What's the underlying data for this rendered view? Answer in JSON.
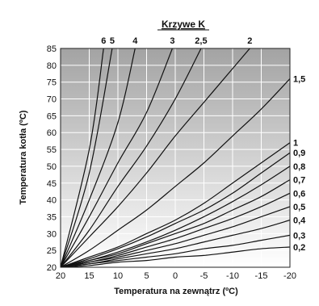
{
  "chart_data": {
    "type": "line",
    "title": "Krzywe K",
    "xlabel": "Temperatura na zewnątrz (ºC)",
    "ylabel": "Temperatura kotła (ºC)",
    "xlim": [
      20,
      -20
    ],
    "ylim": [
      20,
      85
    ],
    "xticks": [
      "20",
      "15",
      "10",
      "5",
      "0",
      "-5",
      "-10",
      "-15",
      "-20"
    ],
    "yticks": [
      "20",
      "25",
      "30",
      "35",
      "40",
      "45",
      "50",
      "55",
      "60",
      "65",
      "70",
      "75",
      "80",
      "85"
    ],
    "grid": true,
    "background": "vertical gradient, gray at top to white at bottom",
    "curves": [
      {
        "name": "6",
        "label_position": "top",
        "x": [
          20,
          15,
          12.5
        ],
        "y": [
          20,
          55,
          85
        ]
      },
      {
        "name": "5",
        "label_position": "top",
        "x": [
          20,
          15,
          11
        ],
        "y": [
          20,
          48,
          85
        ]
      },
      {
        "name": "4",
        "label_position": "top",
        "x": [
          20,
          15,
          10,
          7
        ],
        "y": [
          20,
          40,
          63,
          85
        ]
      },
      {
        "name": "3",
        "label_position": "top",
        "x": [
          20,
          15,
          10,
          5,
          0.5
        ],
        "y": [
          20,
          35,
          51,
          66,
          85
        ]
      },
      {
        "name": "2,5",
        "label_position": "top",
        "x": [
          20,
          15,
          10,
          5,
          0,
          -4.5
        ],
        "y": [
          20,
          31,
          44,
          56,
          70,
          85
        ]
      },
      {
        "name": "2",
        "label_position": "top",
        "x": [
          20,
          15,
          10,
          5,
          0,
          -5,
          -10,
          -13
        ],
        "y": [
          20,
          29,
          38,
          48,
          59,
          69,
          79,
          85
        ]
      },
      {
        "name": "1,5",
        "label_position": "right",
        "x": [
          20,
          15,
          10,
          5,
          0,
          -5,
          -10,
          -15,
          -20
        ],
        "y": [
          20,
          25,
          31,
          37,
          44,
          51,
          59,
          67,
          76
        ]
      },
      {
        "name": "1",
        "label_position": "right",
        "x": [
          20,
          15,
          10,
          5,
          0,
          -5,
          -10,
          -15,
          -20
        ],
        "y": [
          20,
          23,
          26,
          30,
          34,
          39,
          45,
          51,
          57
        ]
      },
      {
        "name": "0,9",
        "label_position": "right",
        "x": [
          20,
          15,
          10,
          5,
          0,
          -5,
          -10,
          -15,
          -20
        ],
        "y": [
          20,
          22.5,
          25.5,
          29,
          33,
          37,
          42,
          48,
          54
        ]
      },
      {
        "name": "0,8",
        "label_position": "right",
        "x": [
          20,
          15,
          10,
          5,
          0,
          -5,
          -10,
          -15,
          -20
        ],
        "y": [
          20,
          22,
          24.5,
          27.5,
          31,
          35,
          39.5,
          44.5,
          50
        ]
      },
      {
        "name": "0,7",
        "label_position": "right",
        "x": [
          20,
          15,
          10,
          5,
          0,
          -5,
          -10,
          -15,
          -20
        ],
        "y": [
          20,
          22,
          24,
          27,
          30,
          33,
          37,
          41,
          46
        ]
      },
      {
        "name": "0,6",
        "label_position": "right",
        "x": [
          20,
          15,
          10,
          5,
          0,
          -5,
          -10,
          -15,
          -20
        ],
        "y": [
          20,
          21.5,
          23.5,
          26,
          28.5,
          31.5,
          34.5,
          38,
          42
        ]
      },
      {
        "name": "0,5",
        "label_position": "right",
        "x": [
          20,
          15,
          10,
          5,
          0,
          -5,
          -10,
          -15,
          -20
        ],
        "y": [
          20,
          21.5,
          23,
          25,
          27,
          29.5,
          32,
          35,
          38
        ]
      },
      {
        "name": "0,4",
        "label_position": "right",
        "x": [
          20,
          15,
          10,
          5,
          0,
          -5,
          -10,
          -15,
          -20
        ],
        "y": [
          20,
          21,
          22.5,
          24,
          25.5,
          27.5,
          29.5,
          31.5,
          34
        ]
      },
      {
        "name": "0,3",
        "label_position": "right",
        "x": [
          20,
          15,
          10,
          5,
          0,
          -5,
          -10,
          -15,
          -20
        ],
        "y": [
          20,
          21,
          22,
          23,
          24,
          25.5,
          26.5,
          28,
          29.5
        ]
      },
      {
        "name": "0,2",
        "label_position": "right",
        "x": [
          20,
          15,
          10,
          5,
          0,
          -5,
          -10,
          -15,
          -20
        ],
        "y": [
          20,
          20.5,
          21.5,
          22,
          23,
          23.5,
          24.5,
          25.5,
          26
        ]
      }
    ]
  }
}
